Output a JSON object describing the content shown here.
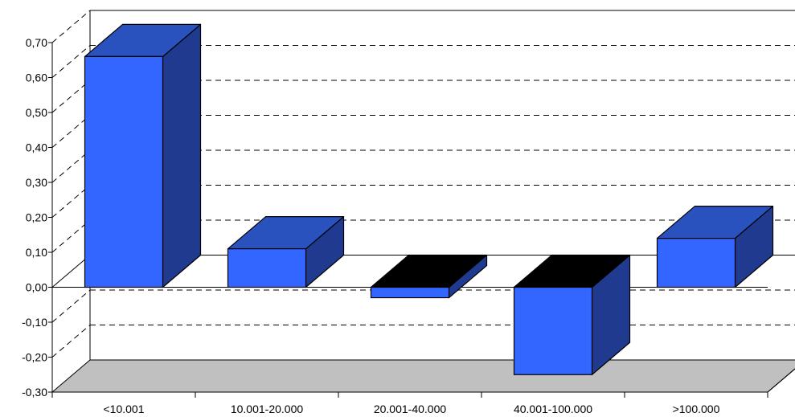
{
  "chart_data": {
    "type": "bar",
    "title": "",
    "xlabel": "",
    "ylabel": "",
    "categories": [
      "<10.001",
      "10.001-20.000",
      "20.001-40.000",
      "40.001-100.000",
      ">100.000"
    ],
    "values": [
      0.66,
      0.11,
      -0.03,
      -0.25,
      0.14
    ],
    "y_ticks": [
      "-0,30",
      "-0,20",
      "-0,10",
      "0,00",
      "0,10",
      "0,20",
      "0,30",
      "0,40",
      "0,50",
      "0,60",
      "0,70"
    ],
    "ylim": [
      -0.3,
      0.7
    ],
    "grid": true,
    "legend": "none",
    "colors": {
      "front": "#3366FF",
      "top": "#2A52BE",
      "side": "#1F3A8F",
      "top_negative": "#000000",
      "floor": "#C0C0C0"
    }
  }
}
